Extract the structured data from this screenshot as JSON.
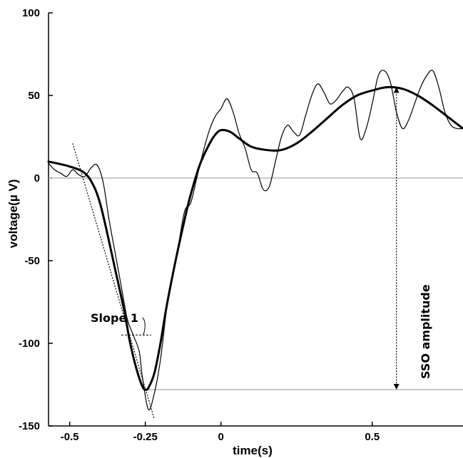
{
  "chart_data": {
    "type": "line",
    "title": "",
    "xlabel": "time(s)",
    "ylabel": "voltage(µ V)",
    "xlim": [
      -0.57,
      0.8
    ],
    "ylim": [
      -150,
      100
    ],
    "x_ticks": [
      -0.5,
      -0.25,
      0,
      0.5
    ],
    "x_tick_labels": [
      "-0.5",
      "-0.25",
      "0",
      "0.5"
    ],
    "y_ticks": [
      -150,
      -100,
      -50,
      0,
      50,
      100
    ],
    "y_tick_labels": [
      "-150",
      "-100",
      "-50",
      "0",
      "50",
      "100"
    ],
    "grid": false,
    "legend": "none",
    "series": [
      {
        "style": "thin",
        "x": [
          -0.57,
          -0.55,
          -0.53,
          -0.51,
          -0.49,
          -0.47,
          -0.45,
          -0.43,
          -0.41,
          -0.39,
          -0.37,
          -0.35,
          -0.33,
          -0.31,
          -0.29,
          -0.27,
          -0.26,
          -0.24,
          -0.22,
          -0.2,
          -0.18,
          -0.16,
          -0.14,
          -0.12,
          -0.1,
          -0.08,
          -0.06,
          -0.04,
          -0.02,
          0.0,
          0.02,
          0.04,
          0.06,
          0.08,
          0.1,
          0.12,
          0.14,
          0.16,
          0.18,
          0.2,
          0.22,
          0.24,
          0.26,
          0.28,
          0.3,
          0.32,
          0.34,
          0.36,
          0.38,
          0.4,
          0.42,
          0.44,
          0.46,
          0.48,
          0.5,
          0.52,
          0.54,
          0.56,
          0.58,
          0.6,
          0.62,
          0.64,
          0.66,
          0.68,
          0.7,
          0.72,
          0.74,
          0.76,
          0.78,
          0.8
        ],
        "values": [
          9,
          5,
          3,
          1,
          5,
          2,
          1,
          6,
          8,
          -2,
          -25,
          -45,
          -65,
          -85,
          -95,
          -105,
          -120,
          -140,
          -130,
          -110,
          -80,
          -60,
          -40,
          -20,
          -15,
          0,
          15,
          28,
          37,
          42,
          48,
          40,
          27,
          18,
          5,
          3,
          -7,
          -5,
          10,
          25,
          32,
          28,
          26,
          38,
          50,
          57,
          52,
          45,
          47,
          52,
          55,
          48,
          24,
          30,
          45,
          62,
          65,
          58,
          40,
          30,
          35,
          45,
          55,
          62,
          65,
          55,
          40,
          32,
          30,
          30
        ]
      },
      {
        "style": "bold",
        "x": [
          -0.57,
          -0.5,
          -0.45,
          -0.42,
          -0.4,
          -0.38,
          -0.35,
          -0.32,
          -0.3,
          -0.28,
          -0.26,
          -0.25,
          -0.24,
          -0.22,
          -0.2,
          -0.18,
          -0.15,
          -0.12,
          -0.1,
          -0.07,
          -0.04,
          -0.02,
          0.0,
          0.03,
          0.06,
          0.1,
          0.15,
          0.2,
          0.25,
          0.3,
          0.35,
          0.4,
          0.45,
          0.5,
          0.55,
          0.6,
          0.65,
          0.7,
          0.75,
          0.8
        ],
        "values": [
          10,
          7,
          3,
          -5,
          -15,
          -30,
          -55,
          -80,
          -100,
          -115,
          -126,
          -128,
          -127,
          -118,
          -100,
          -78,
          -50,
          -25,
          -10,
          8,
          20,
          26,
          29,
          28,
          24,
          19,
          17,
          17,
          21,
          28,
          36,
          44,
          50,
          53,
          55,
          54,
          50,
          44,
          37,
          30
        ]
      }
    ],
    "annotations": {
      "slope_label": "Slope 1",
      "sso_label": "SSO amplitude"
    }
  }
}
